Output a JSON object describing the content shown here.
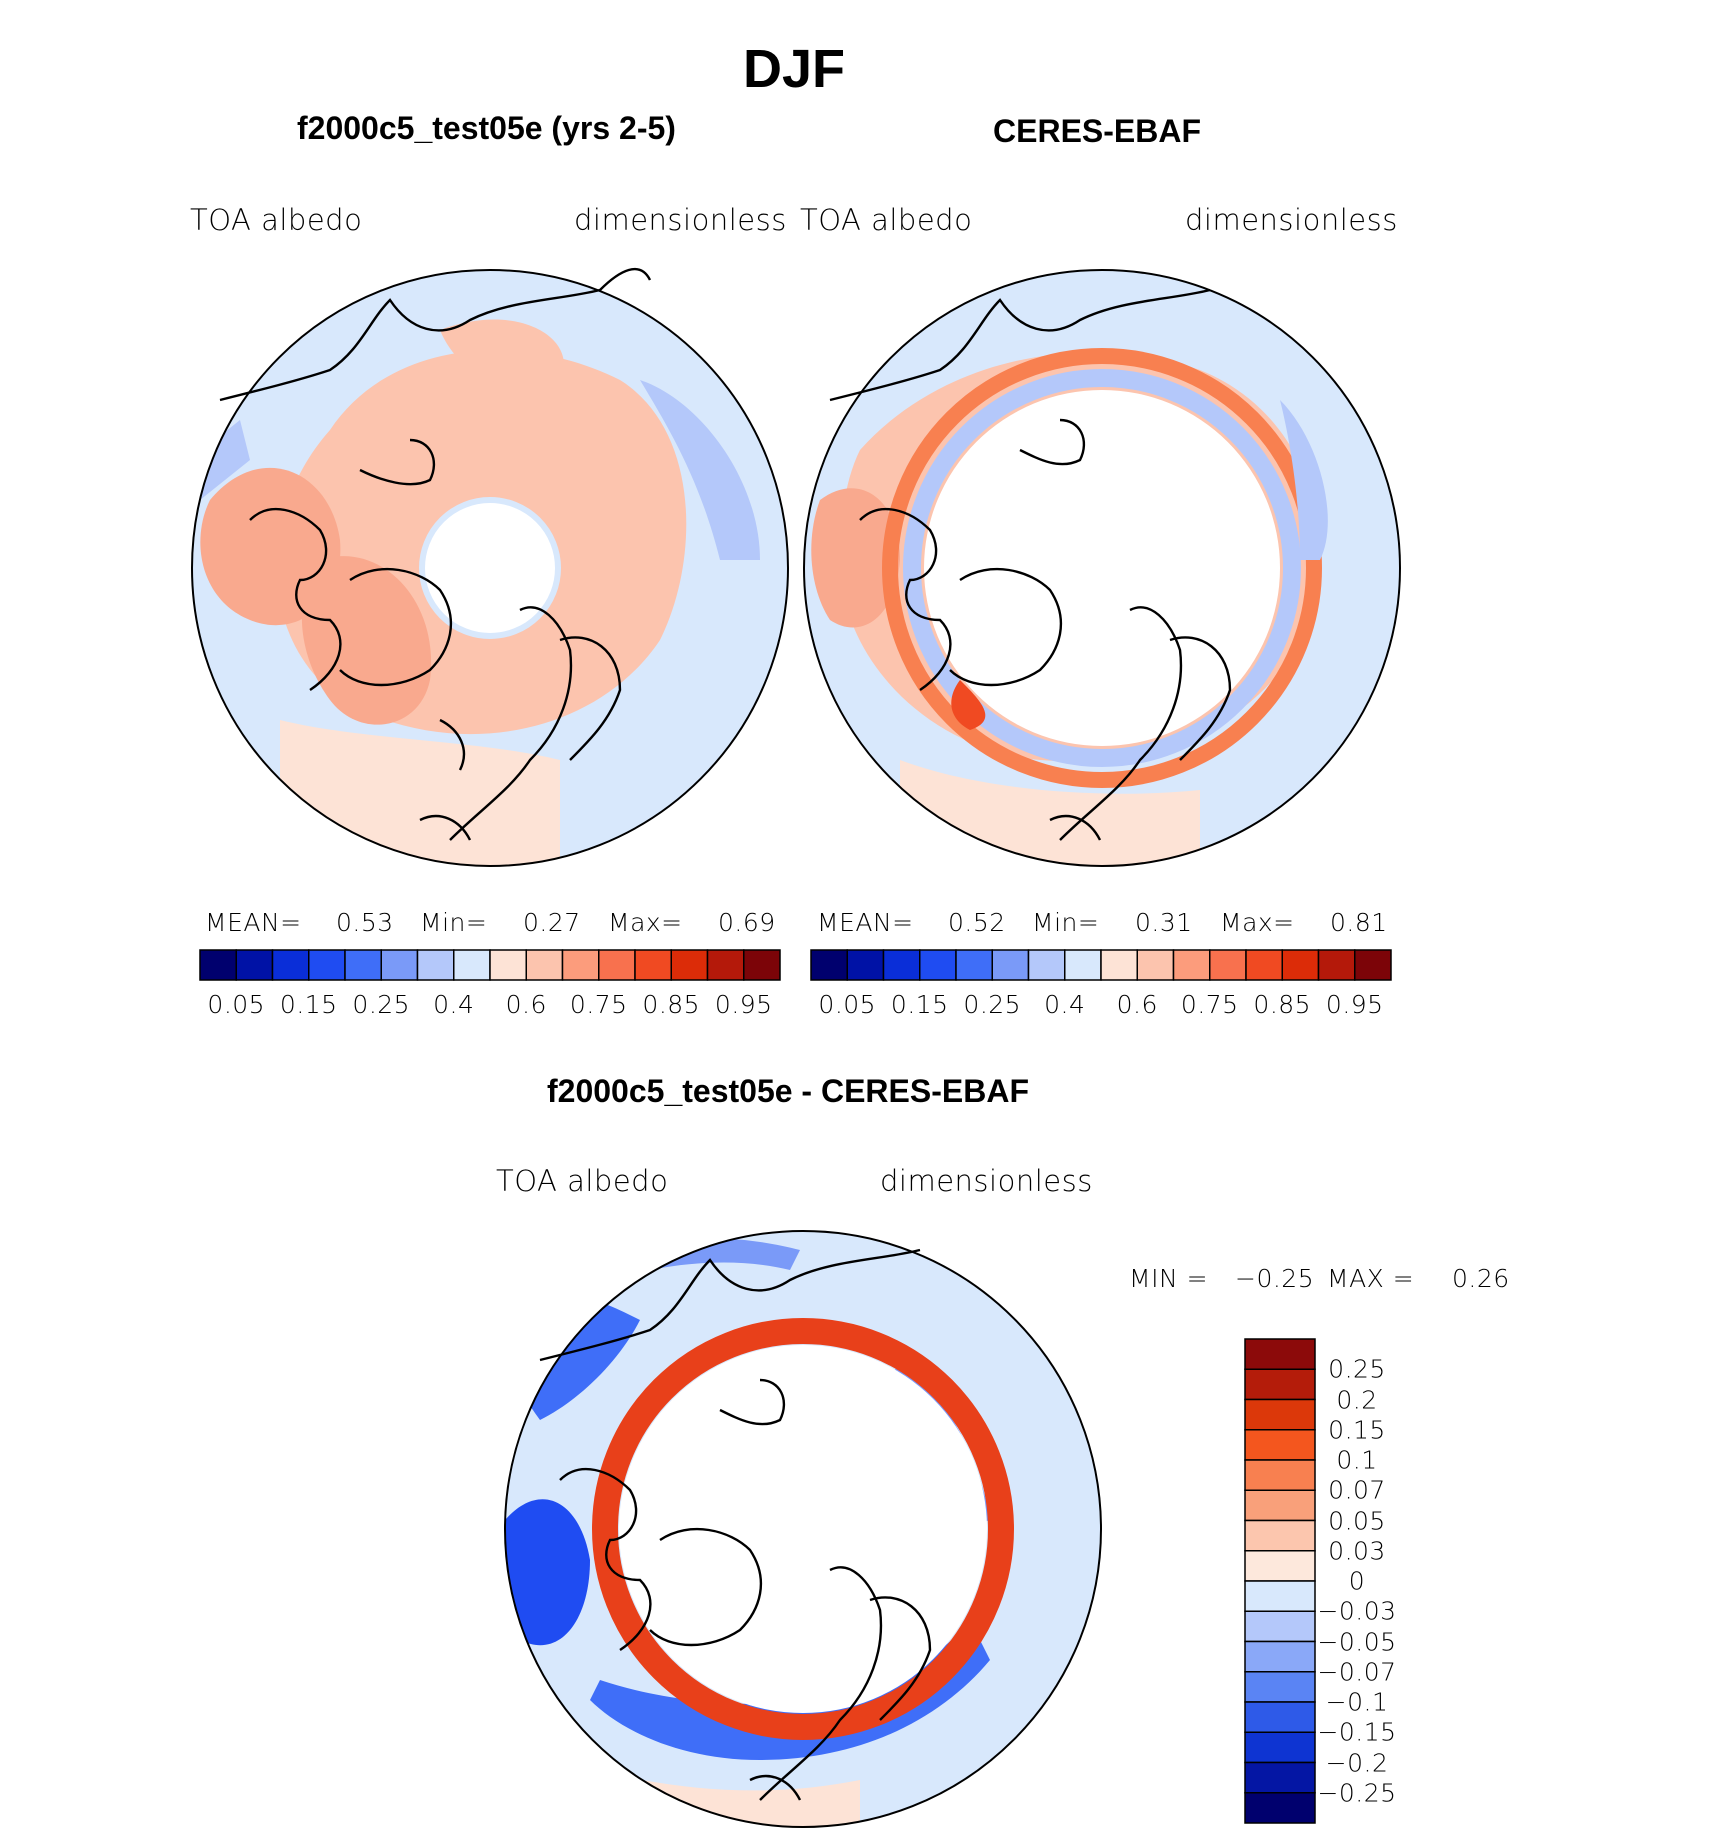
{
  "figure": {
    "title": "DJF",
    "panels": [
      {
        "subtitle": "f2000c5_test05e (yrs 2-5)",
        "left_label": "TOA  albedo",
        "right_label": "dimensionless",
        "mean_label": "MEAN=",
        "mean_value": "0.53",
        "min_label": "Min=",
        "min_value": "0.27",
        "max_label": "Max=",
        "max_value": "0.69"
      },
      {
        "subtitle": "CERES-EBAF",
        "left_label": "TOA  albedo",
        "right_label": "dimensionless",
        "mean_label": "MEAN=",
        "mean_value": "0.52",
        "min_label": "Min=",
        "min_value": "0.31",
        "max_label": "Max=",
        "max_value": "0.81"
      }
    ],
    "difference": {
      "subtitle": "f2000c5_test05e - CERES-EBAF",
      "left_label": "TOA  albedo",
      "right_label": "dimensionless",
      "min_label": "MIN  =",
      "min_value": "−0.25",
      "max_label": "MAX  =",
      "max_value": "0.26"
    }
  },
  "colorbars": {
    "field": {
      "colors": [
        "#00006e",
        "#0012a6",
        "#0a2ed8",
        "#1f4cf2",
        "#3f6ef8",
        "#7a9af8",
        "#b4c8fa",
        "#d8e8fc",
        "#fde3d6",
        "#fcc4ae",
        "#fc9c7c",
        "#f8714e",
        "#f04a22",
        "#dc2c08",
        "#b4190a",
        "#7c0408"
      ],
      "tick_labels": [
        "0.05",
        "0.15",
        "0.25",
        "0.4",
        "0.6",
        "0.75",
        "0.85",
        "0.95"
      ]
    },
    "diff": {
      "colors_top_to_bottom": [
        "#8c0a0a",
        "#b41c0a",
        "#dc380a",
        "#f4561e",
        "#f88050",
        "#f9a07a",
        "#fcc6ae",
        "#fde8dc",
        "#d8e8fc",
        "#b4c8fa",
        "#8aa8f8",
        "#5a84f4",
        "#2e5ae8",
        "#0e34d2",
        "#0416a4",
        "#00006e"
      ],
      "tick_labels": [
        "0.25",
        "0.2",
        "0.15",
        "0.1",
        "0.07",
        "0.05",
        "0.03",
        "0",
        "−0.03",
        "−0.05",
        "−0.07",
        "−0.1",
        "−0.15",
        "−0.2",
        "−0.25"
      ]
    }
  }
}
